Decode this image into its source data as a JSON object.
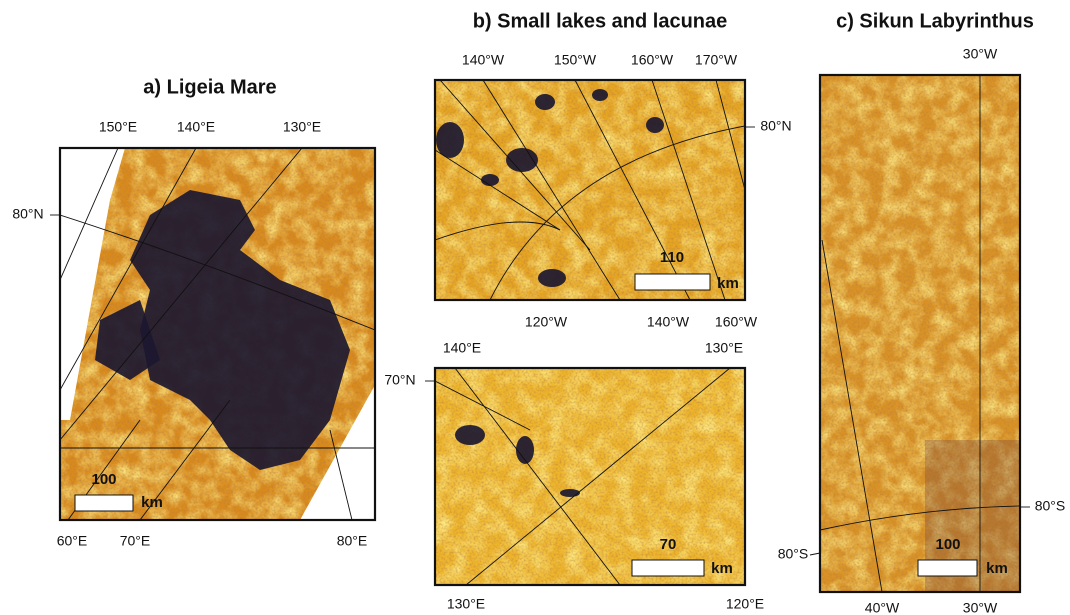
{
  "panels": [
    {
      "title": "a) Ligeia Mare",
      "top_labels": [
        "150°E",
        "140°E",
        "130°E"
      ],
      "left_labels": [
        "80°N"
      ],
      "bottom_labels": [
        "60°E",
        "70°E",
        "80°E"
      ],
      "scale_bar": {
        "value": 100,
        "unit": "km"
      }
    },
    {
      "title": "b) Small lakes and lacunae",
      "top_labels": [
        "140°W",
        "150°W",
        "160°W",
        "170°W"
      ],
      "right_labels": [
        "80°N"
      ],
      "bottom_labels": [
        "120°W",
        "140°W",
        "160°W"
      ],
      "scale_bar": {
        "value": 110,
        "unit": "km"
      }
    },
    {
      "top_labels": [
        "140°E",
        "130°E"
      ],
      "left_labels": [
        "70°N"
      ],
      "bottom_labels": [
        "130°E",
        "120°E"
      ],
      "scale_bar": {
        "value": 70,
        "unit": "km"
      }
    },
    {
      "title": "c) Sikun Labyrinthus",
      "top_labels": [
        "30°W"
      ],
      "left_labels": [
        "80°S"
      ],
      "right_labels": [
        "80°S"
      ],
      "bottom_labels": [
        "40°W",
        "30°W"
      ],
      "scale_bar": {
        "value": 100,
        "unit": "km"
      }
    }
  ]
}
